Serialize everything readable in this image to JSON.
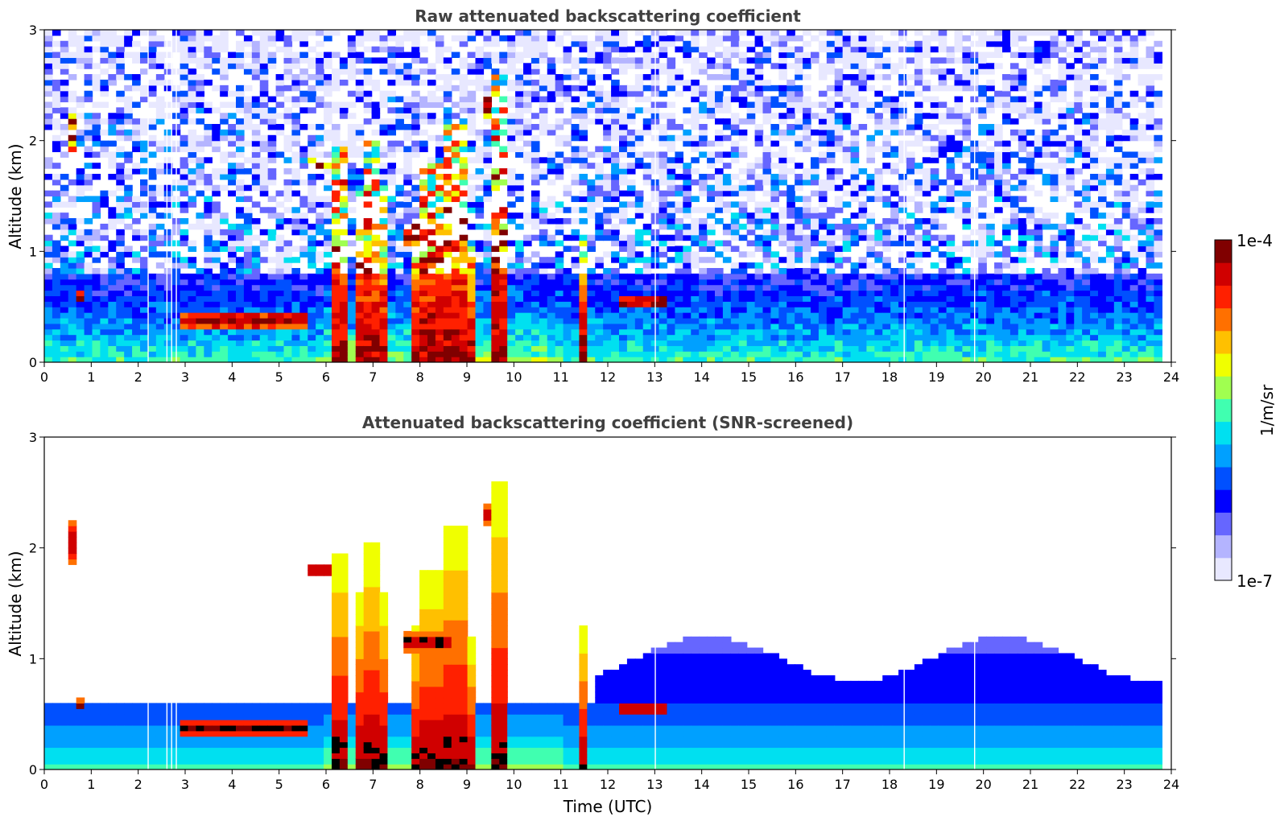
{
  "chart_data": [
    {
      "type": "heatmap",
      "title": "Raw attenuated backscattering coefficient",
      "xlabel": "",
      "ylabel": "Altitude (km)",
      "xlim": [
        0,
        24
      ],
      "ylim": [
        0,
        3
      ],
      "x_ticks": [
        "0",
        "1",
        "2",
        "3",
        "4",
        "5",
        "6",
        "7",
        "8",
        "9",
        "10",
        "11",
        "12",
        "13",
        "14",
        "15",
        "16",
        "17",
        "18",
        "19",
        "20",
        "21",
        "22",
        "23",
        "24"
      ],
      "y_ticks": [
        "0",
        "1",
        "2",
        "3"
      ],
      "data_extent_x": [
        0,
        23.8
      ],
      "grid": false,
      "screened": false
    },
    {
      "type": "heatmap",
      "title": "Attenuated backscattering coefficient (SNR-screened)",
      "xlabel": "Time (UTC)",
      "ylabel": "Altitude (km)",
      "xlim": [
        0,
        24
      ],
      "ylim": [
        0,
        3
      ],
      "x_ticks": [
        "0",
        "1",
        "2",
        "3",
        "4",
        "5",
        "6",
        "7",
        "8",
        "9",
        "10",
        "11",
        "12",
        "13",
        "14",
        "15",
        "16",
        "17",
        "18",
        "19",
        "20",
        "21",
        "22",
        "23",
        "24"
      ],
      "y_ticks": [
        "0",
        "1",
        "2",
        "3"
      ],
      "data_extent_x": [
        0,
        23.8
      ],
      "grid": false,
      "screened": true
    }
  ],
  "features": {
    "layers": [
      {
        "t0": 2.9,
        "t1": 5.6,
        "h": 0.38,
        "w": 0.07
      },
      {
        "t0": 5.6,
        "t1": 6.2,
        "h": 1.8,
        "w": 0.06
      },
      {
        "t0": 7.6,
        "t1": 8.6,
        "h": 1.15,
        "w": 0.09
      },
      {
        "t0": 0.55,
        "t1": 0.7,
        "h": 2.05,
        "w": 0.18
      },
      {
        "t0": 9.3,
        "t1": 9.5,
        "h": 2.3,
        "w": 0.08
      },
      {
        "t0": 12.3,
        "t1": 13.2,
        "h": 0.55,
        "w": 0.06
      },
      {
        "t0": 0.7,
        "t1": 0.9,
        "h": 0.58,
        "w": 0.05
      }
    ],
    "precip": [
      {
        "t0": 6.1,
        "t1": 6.45,
        "top": 1.95
      },
      {
        "t0": 6.55,
        "t1": 6.75,
        "top": 1.6
      },
      {
        "t0": 6.75,
        "t1": 7.1,
        "top": 2.05
      },
      {
        "t0": 7.1,
        "t1": 7.35,
        "top": 1.6
      },
      {
        "t0": 7.75,
        "t1": 8.0,
        "top": 1.3
      },
      {
        "t0": 8.0,
        "t1": 8.55,
        "top": 1.8
      },
      {
        "t0": 8.55,
        "t1": 9.0,
        "top": 2.2
      },
      {
        "t0": 9.0,
        "t1": 9.15,
        "top": 1.2
      },
      {
        "t0": 11.45,
        "t1": 11.6,
        "top": 1.3
      },
      {
        "t0": 9.6,
        "t1": 9.9,
        "top": 2.6
      }
    ],
    "gaps": [
      2.2,
      2.6,
      2.7,
      2.8,
      13.0,
      18.3,
      19.8
    ]
  },
  "colorbar": {
    "label": "1/m/sr",
    "max_label": "1e-4",
    "min_label": "1e-7",
    "colors": [
      "#e8e8ff",
      "#b4b4ff",
      "#6666ff",
      "#0000ff",
      "#0050ff",
      "#00a0ff",
      "#00e0f0",
      "#40ffb0",
      "#a0ff50",
      "#f0ff00",
      "#ffc000",
      "#ff7000",
      "#ff2000",
      "#d00000",
      "#800000"
    ]
  }
}
